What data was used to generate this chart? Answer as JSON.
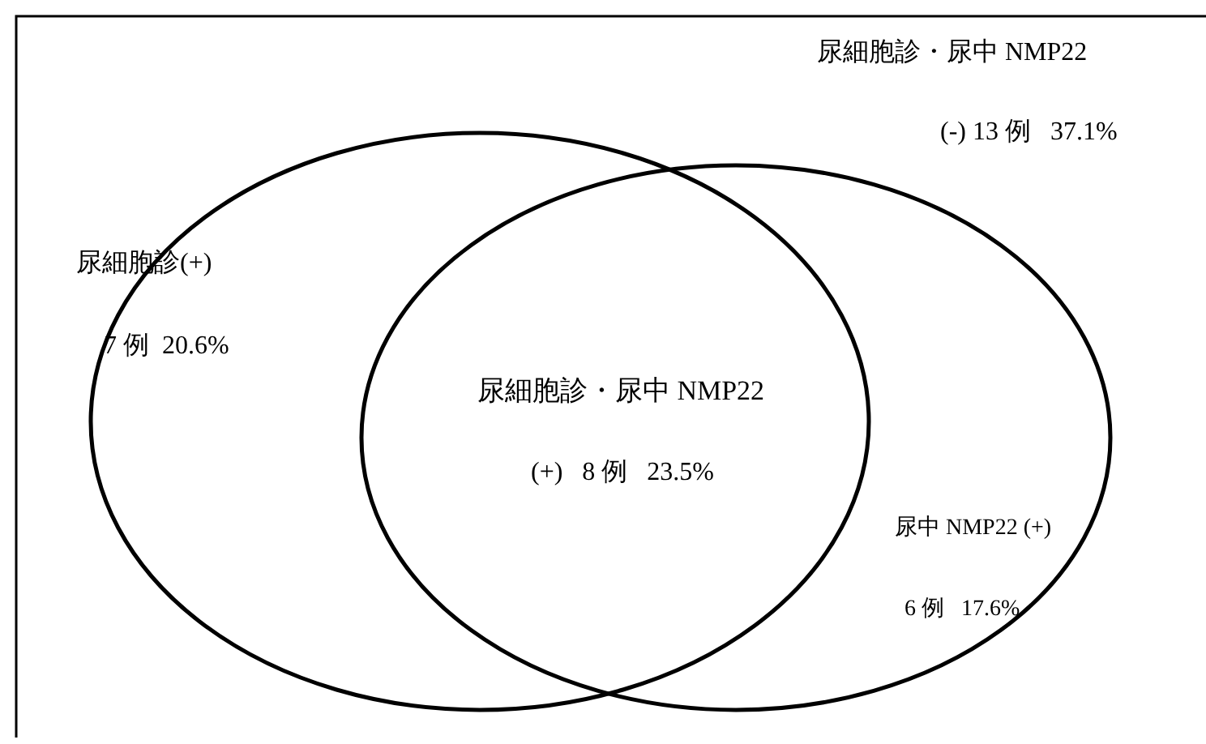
{
  "chart_data": {
    "type": "other",
    "categories": [
      "尿細胞診(+)",
      "尿細胞診・尿中 NMP22",
      "尿中 NMP22 (+)",
      "尿細胞診・尿中 NMP22"
    ],
    "values": [
      7,
      8,
      6,
      13
    ],
    "value_labels": [
      "7 例  20.6%",
      "(+)   8 例   23.5%",
      "6 例   17.6%",
      "(-) 13 例   37.1%"
    ]
  }
}
